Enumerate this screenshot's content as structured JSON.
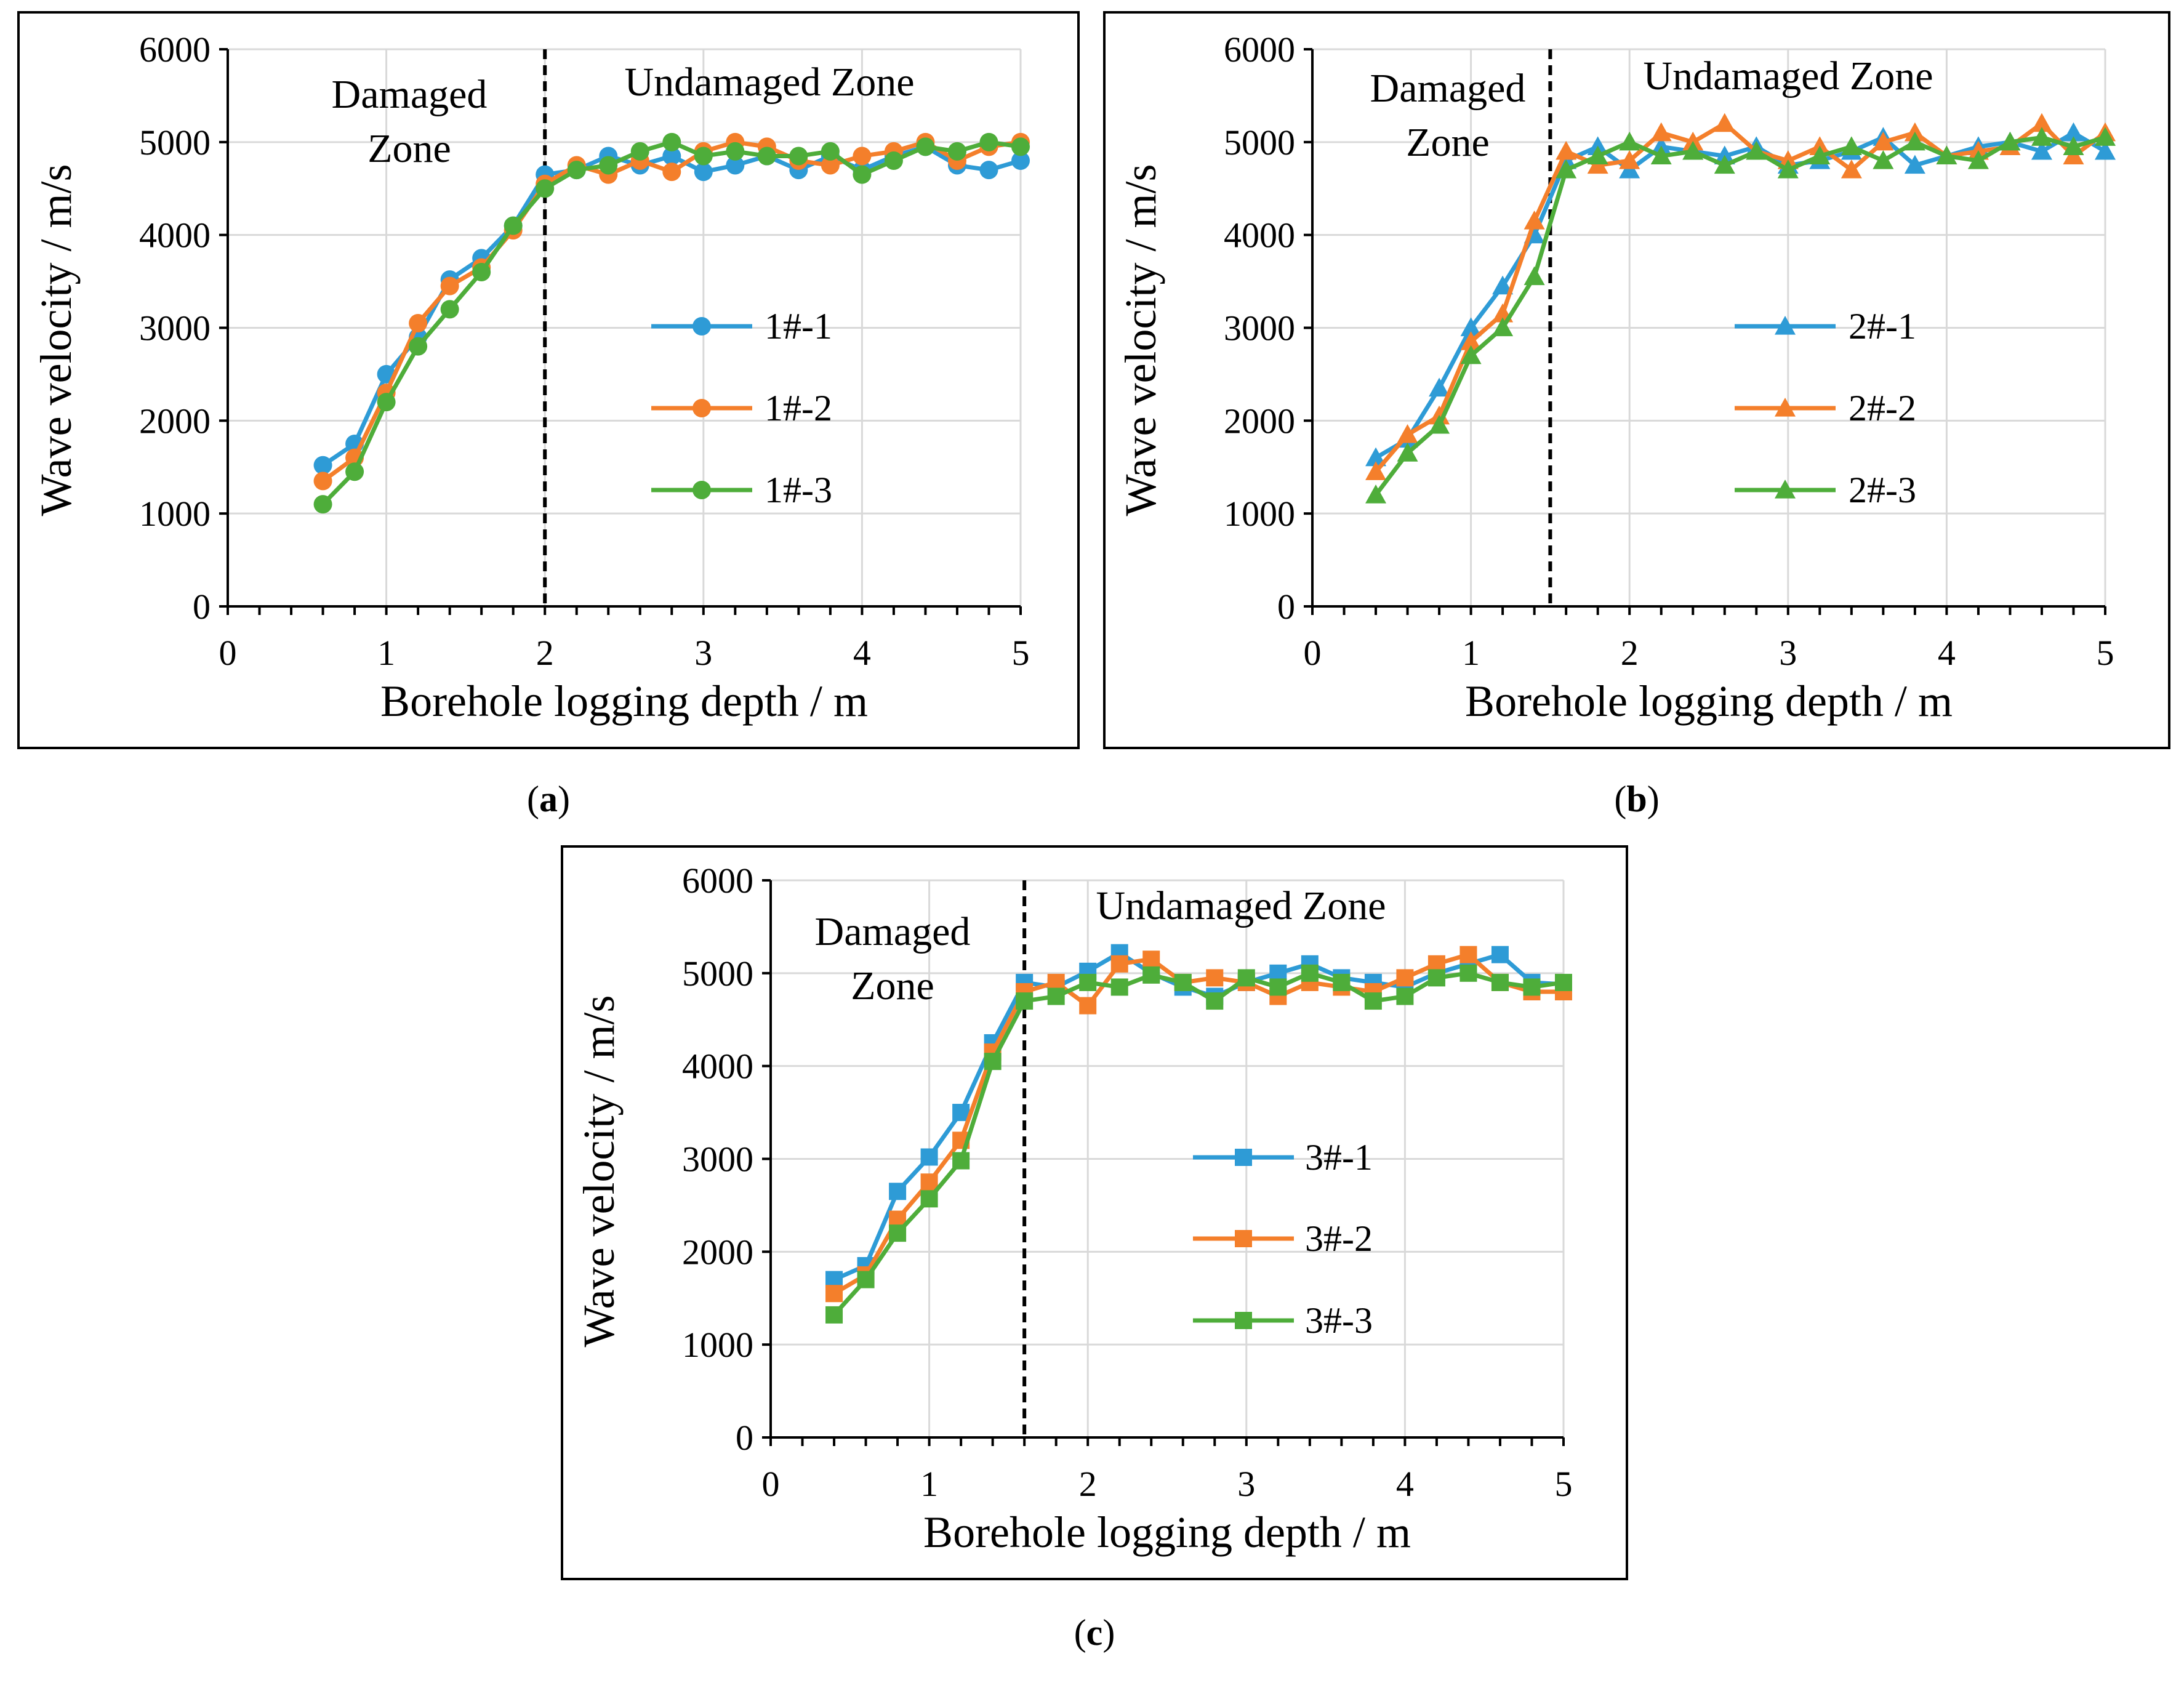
{
  "chart_data": [
    {
      "panel": "a",
      "type": "line",
      "caption_letter": "a",
      "xlabel": "Borehole logging depth / m",
      "ylabel": "Wave velocity / m/s",
      "xlim": [
        0,
        5
      ],
      "ylim": [
        0,
        6000
      ],
      "xticks": [
        0,
        1,
        2,
        3,
        4,
        5
      ],
      "yticks": [
        0,
        1000,
        2000,
        3000,
        4000,
        5000,
        6000
      ],
      "grid": true,
      "marker": "circle",
      "boundary_depth": 2.0,
      "zones": {
        "damaged_line1": "Damaged",
        "damaged_line2": "Zone",
        "undamaged": "Undamaged Zone"
      },
      "x": [
        0.6,
        0.8,
        1.0,
        1.2,
        1.4,
        1.6,
        1.8,
        2.0,
        2.2,
        2.4,
        2.6,
        2.8,
        3.0,
        3.2,
        3.4,
        3.6,
        3.8,
        4.0,
        4.2,
        4.4,
        4.6,
        4.8,
        5.0
      ],
      "series": [
        {
          "name": "1#-1",
          "color": "#2E9BD6",
          "values": [
            1520,
            1750,
            2500,
            2900,
            3520,
            3750,
            4100,
            4650,
            4700,
            4850,
            4750,
            4850,
            4680,
            4750,
            4850,
            4700,
            4850,
            4700,
            4850,
            4950,
            4750,
            4700,
            4800
          ]
        },
        {
          "name": "1#-2",
          "color": "#F47F2B",
          "values": [
            1350,
            1600,
            2300,
            3050,
            3450,
            3650,
            4050,
            4550,
            4750,
            4650,
            4800,
            4680,
            4900,
            5000,
            4950,
            4800,
            4750,
            4850,
            4900,
            5000,
            4800,
            4950,
            5000
          ]
        },
        {
          "name": "1#-3",
          "color": "#4EAD3A",
          "values": [
            1100,
            1450,
            2200,
            2800,
            3200,
            3600,
            4100,
            4500,
            4700,
            4750,
            4900,
            5000,
            4850,
            4900,
            4850,
            4850,
            4900,
            4650,
            4800,
            4950,
            4900,
            5000,
            4950
          ]
        }
      ]
    },
    {
      "panel": "b",
      "type": "line",
      "caption_letter": "b",
      "xlabel": "Borehole logging depth / m",
      "ylabel": "Wave velocity / m/s",
      "xlim": [
        0,
        5
      ],
      "ylim": [
        0,
        6000
      ],
      "xticks": [
        0,
        1,
        2,
        3,
        4,
        5
      ],
      "yticks": [
        0,
        1000,
        2000,
        3000,
        4000,
        5000,
        6000
      ],
      "grid": true,
      "marker": "triangle",
      "boundary_depth": 1.5,
      "zones": {
        "damaged_line1": "Damaged",
        "damaged_line2": "Zone",
        "undamaged": "Undamaged Zone"
      },
      "x": [
        0.4,
        0.6,
        0.8,
        1.0,
        1.2,
        1.4,
        1.6,
        1.8,
        2.0,
        2.2,
        2.4,
        2.6,
        2.8,
        3.0,
        3.2,
        3.4,
        3.6,
        3.8,
        4.0,
        4.2,
        4.4,
        4.6,
        4.8,
        5.0
      ],
      "series": [
        {
          "name": "2#-1",
          "color": "#2E9BD6",
          "values": [
            1600,
            1800,
            2350,
            3000,
            3450,
            4000,
            4800,
            4950,
            4700,
            4950,
            4900,
            4850,
            4950,
            4750,
            4800,
            4900,
            5050,
            4750,
            4850,
            4950,
            5000,
            4900,
            5100,
            4900
          ]
        },
        {
          "name": "2#-2",
          "color": "#F47F2B",
          "values": [
            1450,
            1850,
            2050,
            2850,
            3150,
            4150,
            4900,
            4750,
            4800,
            5100,
            5000,
            5200,
            4900,
            4800,
            4950,
            4700,
            5000,
            5100,
            4850,
            4900,
            4950,
            5200,
            4850,
            5100
          ]
        },
        {
          "name": "2#-3",
          "color": "#4EAD3A",
          "values": [
            1200,
            1650,
            1950,
            2700,
            3000,
            3550,
            4700,
            4850,
            5000,
            4850,
            4900,
            4750,
            4900,
            4700,
            4850,
            4950,
            4800,
            5000,
            4850,
            4800,
            5000,
            5050,
            4950,
            5050
          ]
        }
      ]
    },
    {
      "panel": "c",
      "type": "line",
      "caption_letter": "c",
      "xlabel": "Borehole logging depth / m",
      "ylabel": "Wave velocity / m/s",
      "xlim": [
        0,
        5
      ],
      "ylim": [
        0,
        6000
      ],
      "xticks": [
        0,
        1,
        2,
        3,
        4,
        5
      ],
      "yticks": [
        0,
        1000,
        2000,
        3000,
        4000,
        5000,
        6000
      ],
      "grid": true,
      "marker": "square",
      "boundary_depth": 1.6,
      "zones": {
        "damaged_line1": "Damaged",
        "damaged_line2": "Zone",
        "undamaged": "Undamaged Zone"
      },
      "x": [
        0.4,
        0.6,
        0.8,
        1.0,
        1.2,
        1.4,
        1.6,
        1.8,
        2.0,
        2.2,
        2.4,
        2.6,
        2.8,
        3.0,
        3.2,
        3.4,
        3.6,
        3.8,
        4.0,
        4.2,
        4.4,
        4.6,
        4.8,
        5.0
      ],
      "series": [
        {
          "name": "3#-1",
          "color": "#2E9BD6",
          "values": [
            1700,
            1850,
            2650,
            3020,
            3500,
            4250,
            4900,
            4850,
            5020,
            5220,
            5000,
            4850,
            4750,
            4900,
            5000,
            5100,
            4950,
            4900,
            4850,
            5000,
            5100,
            5200,
            4900,
            4880
          ]
        },
        {
          "name": "3#-2",
          "color": "#F47F2B",
          "values": [
            1550,
            1750,
            2350,
            2750,
            3200,
            4150,
            4800,
            4900,
            4650,
            5100,
            5150,
            4900,
            4950,
            4900,
            4750,
            4900,
            4850,
            4800,
            4950,
            5100,
            5200,
            4900,
            4800,
            4800
          ]
        },
        {
          "name": "3#-3",
          "color": "#4EAD3A",
          "values": [
            1320,
            1700,
            2200,
            2570,
            2980,
            4050,
            4700,
            4750,
            4900,
            4850,
            4980,
            4900,
            4700,
            4950,
            4850,
            5000,
            4900,
            4700,
            4750,
            4950,
            5000,
            4900,
            4850,
            4900
          ]
        }
      ]
    }
  ]
}
